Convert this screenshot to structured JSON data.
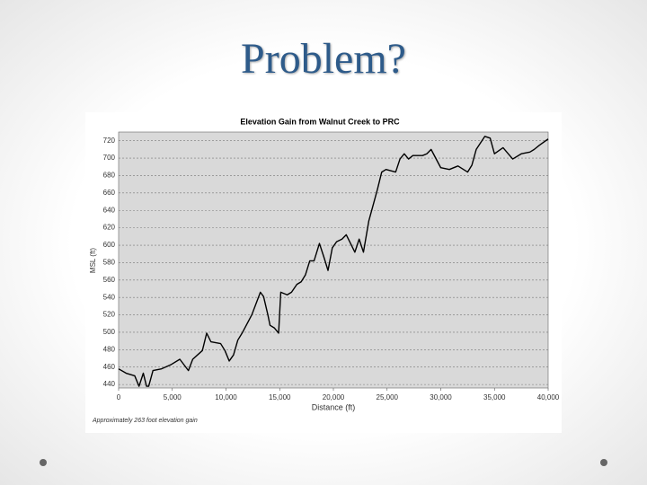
{
  "slide_title": "Problem?",
  "chart_data": {
    "type": "line",
    "title": "Elevation Gain from Walnut Creek to PRC",
    "x_label": "Distance (ft)",
    "y_label": "MSL (ft)",
    "annotation": "Approximately 263 foot elevation gain",
    "xlim": [
      0,
      40000
    ],
    "ylim": [
      436,
      730
    ],
    "xticks": [
      0,
      {
        "value": 5000,
        "label": "5,000"
      },
      {
        "value": 10000,
        "label": "10,000"
      },
      {
        "value": 15000,
        "label": "15,000"
      },
      {
        "value": 20000,
        "label": "20,000"
      },
      {
        "value": 25000,
        "label": "25,000"
      },
      {
        "value": 30000,
        "label": "30,000"
      },
      {
        "value": 35000,
        "label": "35,000"
      },
      {
        "value": 40000,
        "label": "40,000"
      }
    ],
    "yticks": [
      440,
      460,
      480,
      500,
      520,
      540,
      560,
      580,
      600,
      620,
      640,
      660,
      680,
      700,
      720
    ],
    "grid": true,
    "series": [
      {
        "color": "#000000",
        "x": [
          0,
          700,
          1500,
          1900,
          2300,
          2600,
          2800,
          3200,
          4000,
          4900,
          5700,
          6500,
          6900,
          7800,
          8200,
          8600,
          9500,
          9900,
          10300,
          10700,
          11100,
          11500,
          12400,
          13200,
          13500,
          13900,
          14100,
          14500,
          14900,
          15100,
          15700,
          16100,
          16600,
          17000,
          17400,
          17800,
          18200,
          18700,
          19100,
          19500,
          19900,
          20300,
          20800,
          21200,
          21600,
          22000,
          22400,
          22800,
          23300,
          24100,
          24500,
          24900,
          25800,
          26200,
          26600,
          27000,
          27400,
          28300,
          28700,
          29100,
          30000,
          30800,
          31600,
          32500,
          32900,
          33300,
          34100,
          34600,
          35000,
          35800,
          36700,
          37500,
          38300,
          38700,
          39200,
          40000
        ],
        "values": [
          458,
          453,
          450,
          438,
          453,
          438,
          438,
          456,
          458,
          463,
          469,
          456,
          469,
          479,
          499,
          489,
          487,
          479,
          467,
          474,
          491,
          499,
          520,
          546,
          541,
          520,
          508,
          505,
          499,
          546,
          543,
          546,
          555,
          558,
          566,
          582,
          582,
          602,
          587,
          571,
          597,
          604,
          607,
          612,
          602,
          592,
          607,
          592,
          628,
          664,
          684,
          687,
          684,
          699,
          705,
          699,
          703,
          703,
          705,
          710,
          689,
          687,
          691,
          684,
          692,
          710,
          725,
          723,
          705,
          712,
          699,
          705,
          707,
          710,
          715,
          722
        ]
      }
    ]
  }
}
